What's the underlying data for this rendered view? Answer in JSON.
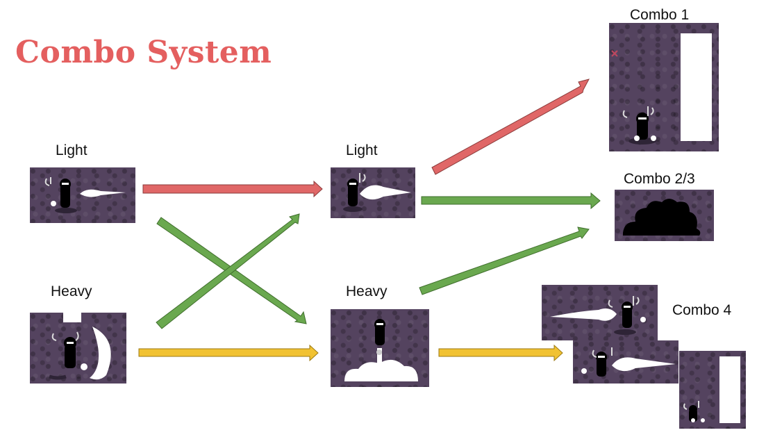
{
  "title": "Combo System",
  "labels": {
    "light_start": "Light",
    "heavy_start": "Heavy",
    "light_mid": "Light",
    "heavy_mid": "Heavy",
    "combo1": "Combo 1",
    "combo23": "Combo 2/3",
    "combo4": "Combo 4"
  },
  "colors": {
    "title": "#e45f5f",
    "arrow_red": "#e06767",
    "arrow_green": "#6aa84f",
    "arrow_yellow": "#f1c232",
    "frame_bg": "#54435f"
  }
}
